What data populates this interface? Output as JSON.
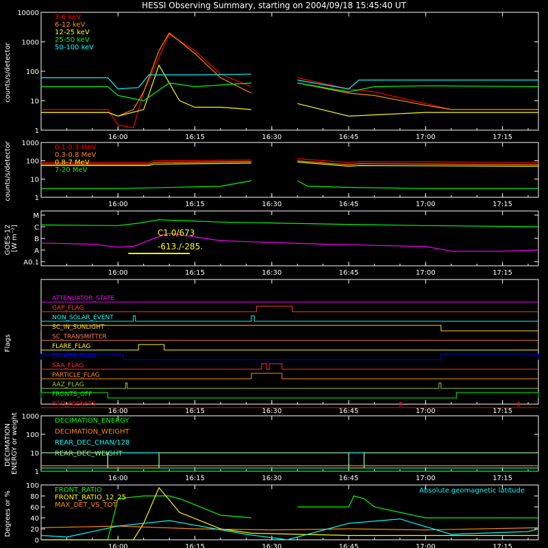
{
  "title": "HESSI Observing Summary, starting on 2004/09/18 15:45:40 UT",
  "time_ticks": [
    "16:00",
    "16:15",
    "16:30",
    "16:45",
    "17:00",
    "17:15"
  ],
  "chart_data": [
    {
      "type": "line",
      "ylabel": "counts/s/detector",
      "yscale": "log",
      "ylim": [
        1,
        10000
      ],
      "yticks": [
        "1",
        "10",
        "100",
        "1000",
        "10000"
      ],
      "legend_position": "top-left",
      "series": [
        {
          "name": "3-6 keV",
          "color": "#ff0000",
          "x": [
            "15:45",
            "15:58",
            "16:00",
            "16:03",
            "16:05",
            "16:08",
            "16:10",
            "16:15",
            "16:20",
            "16:26",
            "16:27",
            "16:34",
            "16:35",
            "16:45",
            "16:50",
            "17:00",
            "17:05",
            "17:15",
            "17:22"
          ],
          "y": [
            5,
            5,
            1.5,
            1.2,
            20,
            300,
            1800,
            500,
            80,
            30,
            null,
            null,
            60,
            25,
            20,
            8,
            5,
            5,
            5
          ]
        },
        {
          "name": "6-12 keV",
          "color": "#ff8c00",
          "x": [
            "15:45",
            "15:58",
            "16:00",
            "16:03",
            "16:05",
            "16:08",
            "16:10",
            "16:15",
            "16:20",
            "16:26",
            "16:27",
            "16:34",
            "16:35",
            "16:45",
            "16:50",
            "17:00",
            "17:05",
            "17:22"
          ],
          "y": [
            4,
            4,
            3,
            5,
            20,
            500,
            2000,
            400,
            60,
            18,
            null,
            null,
            40,
            18,
            15,
            7,
            5,
            5
          ]
        },
        {
          "name": "12-25 keV",
          "color": "#ffff00",
          "x": [
            "15:45",
            "15:58",
            "16:00",
            "16:05",
            "16:08",
            "16:12",
            "16:15",
            "16:20",
            "16:26",
            "16:27",
            "16:34",
            "16:35",
            "16:45",
            "17:00",
            "17:22"
          ],
          "y": [
            4,
            4,
            3,
            5,
            160,
            10,
            6,
            6,
            5,
            null,
            null,
            8,
            3,
            4,
            4
          ]
        },
        {
          "name": "25-50 keV",
          "color": "#00ff00",
          "x": [
            "15:45",
            "15:58",
            "16:00",
            "16:05",
            "16:10",
            "16:15",
            "16:26",
            "16:27",
            "16:34",
            "16:35",
            "16:45",
            "16:50",
            "17:00",
            "17:22"
          ],
          "y": [
            30,
            30,
            15,
            10,
            40,
            30,
            40,
            null,
            null,
            40,
            20,
            30,
            32,
            30
          ]
        },
        {
          "name": "50-100 keV",
          "color": "#00ffff",
          "x": [
            "15:45",
            "15:58",
            "16:00",
            "16:04",
            "16:06",
            "16:15",
            "16:26",
            "16:27",
            "16:34",
            "16:35",
            "16:45",
            "16:47",
            "17:00",
            "17:22"
          ],
          "y": [
            60,
            60,
            25,
            28,
            75,
            75,
            80,
            null,
            null,
            50,
            25,
            50,
            50,
            50
          ]
        }
      ]
    },
    {
      "type": "line",
      "ylabel": "counts/s/detector",
      "yscale": "log",
      "ylim": [
        1,
        1000
      ],
      "yticks": [
        "1",
        "10",
        "100",
        "1000"
      ],
      "legend_position": "top-left",
      "series": [
        {
          "name": "0.1-0.3 MeV",
          "color": "#ff0000",
          "x": [
            "15:45",
            "16:06",
            "16:07",
            "16:26",
            "16:27",
            "16:34",
            "16:35",
            "16:45",
            "16:47",
            "17:22"
          ],
          "y": [
            80,
            80,
            100,
            110,
            null,
            null,
            130,
            80,
            90,
            80
          ]
        },
        {
          "name": "0.3-0.8 MeV",
          "color": "#ff8c00",
          "x": [
            "15:45",
            "16:06",
            "16:07",
            "16:26",
            "16:27",
            "16:34",
            "16:35",
            "16:45",
            "16:47",
            "17:22"
          ],
          "y": [
            65,
            65,
            80,
            90,
            null,
            null,
            100,
            60,
            70,
            60
          ]
        },
        {
          "name": "0.8-7 MeV",
          "color": "#ffff00",
          "x": [
            "15:45",
            "16:06",
            "16:07",
            "16:26",
            "16:27",
            "16:34",
            "16:35",
            "16:45",
            "16:47",
            "17:22"
          ],
          "y": [
            55,
            55,
            65,
            75,
            null,
            null,
            85,
            50,
            55,
            50
          ]
        },
        {
          "name": "7-20 MeV",
          "color": "#00ff00",
          "x": [
            "15:45",
            "16:00",
            "16:20",
            "16:26",
            "16:27",
            "16:34",
            "16:35",
            "16:37",
            "16:45",
            "17:00",
            "17:22"
          ],
          "y": [
            3,
            3,
            4,
            8,
            null,
            null,
            8,
            4,
            3.5,
            3,
            3
          ]
        }
      ]
    },
    {
      "type": "line",
      "ylabel": "GOES-12",
      "ylabel2": "[W m⁻²]",
      "yscale": "log",
      "ylim": [
        0,
        5
      ],
      "yticks": [
        "A0.1",
        "A",
        "B",
        "C",
        "M"
      ],
      "annotations": [
        "C1.0/673",
        "-613./-285."
      ],
      "series": [
        {
          "name": "",
          "color": "#00ff00",
          "x": [
            "15:45",
            "16:00",
            "16:04",
            "16:08",
            "16:20",
            "16:45",
            "17:00",
            "17:22"
          ],
          "y": [
            3.15,
            3.1,
            3.3,
            3.6,
            3.4,
            3.2,
            3.1,
            3.0
          ]
        },
        {
          "name": "",
          "color": "#ff00ff",
          "x": [
            "15:45",
            "15:55",
            "16:00",
            "16:03",
            "16:07",
            "16:10",
            "16:20",
            "16:40",
            "17:00",
            "17:05",
            "17:15",
            "17:22"
          ],
          "y": [
            1.6,
            1.5,
            1.25,
            1.3,
            2.0,
            2.45,
            1.8,
            1.5,
            1.3,
            0.9,
            0.9,
            1.0
          ]
        }
      ]
    },
    {
      "type": "line",
      "ylabel": "Flags",
      "flags": [
        {
          "name": "ATTENUATOR_STATE",
          "color": "#ff00ff",
          "segments": []
        },
        {
          "name": "GAP_FLAG",
          "color": "#ff4500",
          "segments": [
            [
              "16:27",
              "16:34"
            ]
          ]
        },
        {
          "name": "NON_SOLAR_EVENT",
          "color": "#00ffff",
          "segments": [
            [
              "16:03",
              "16:03.4"
            ],
            [
              "16:26",
              "16:26.6"
            ]
          ]
        },
        {
          "name": "SC_IN_SUNLIGHT",
          "color": "#ffd700",
          "segments": [
            [
              "15:45",
              "17:03"
            ]
          ]
        },
        {
          "name": "SC_TRANSMITTER",
          "color": "#ff7f50",
          "segments": []
        },
        {
          "name": "FLARE_FLAG",
          "color": "#ffff00",
          "segments": [
            [
              "16:04",
              "16:09"
            ]
          ]
        },
        {
          "name": "ECLIPSE_FLAG",
          "color": "#0000ff",
          "segments": [
            [
              "15:45",
              "16:01"
            ],
            [
              "17:03",
              "17:22"
            ]
          ]
        },
        {
          "name": "SAA_FLAG",
          "color": "#ff3030",
          "segments": [
            [
              "16:28",
              "16:29"
            ],
            [
              "16:29.5",
              "16:32"
            ]
          ]
        },
        {
          "name": "PARTICLE_FLAG",
          "color": "#ff8c00",
          "segments": [
            [
              "16:26",
              "16:32"
            ]
          ]
        },
        {
          "name": "AAZ_FLAG",
          "color": "#9acd32",
          "segments": [
            [
              "16:01.5",
              "16:01.8"
            ],
            [
              "17:02.6",
              "17:03"
            ]
          ]
        },
        {
          "name": "FRONTS_OFF",
          "color": "#00ff00",
          "segments": [
            [
              "15:45",
              "15:58"
            ],
            [
              "17:06",
              "17:22"
            ]
          ]
        },
        {
          "name": "BAD_PACKETS",
          "color": "#ff0000",
          "segments": [
            [
              "16:55",
              "16:55.3"
            ],
            [
              "17:18",
              "17:18.3"
            ]
          ]
        }
      ]
    },
    {
      "type": "line",
      "ylabel": "DECIMATION",
      "ylabel2": "ENERGY or weight",
      "yscale": "log",
      "ylim": [
        1,
        1000
      ],
      "yticks": [
        "1",
        "10",
        "100",
        "1000"
      ],
      "legend_position": "top-left",
      "series": [
        {
          "name": "DECIMATION_ENERGY",
          "color": "#00ff00",
          "x": [
            "15:45",
            "17:22"
          ],
          "y": [
            1,
            1
          ]
        },
        {
          "name": "DECIMATION_WEIGHT",
          "color": "#ff8c00",
          "x": [
            "15:45",
            "17:22"
          ],
          "y": [
            2,
            2
          ]
        },
        {
          "name": "REAR_DEC_CHAN/128",
          "color": "#00ffff",
          "x": [
            "15:45",
            "15:58",
            "15:58",
            "16:08",
            "16:08",
            "16:45",
            "16:45",
            "16:48",
            "16:48",
            "17:22"
          ],
          "y": [
            1.5,
            1.5,
            10,
            10,
            1.5,
            1.5,
            10,
            10,
            1.5,
            1.5
          ]
        },
        {
          "name": "REAR_DEC_WEIGHT",
          "color": "#90ee90",
          "x": [
            "15:45",
            "15:58",
            "15:58",
            "16:08",
            "16:08",
            "16:45",
            "16:45",
            "16:48",
            "16:48",
            "17:22"
          ],
          "y": [
            10,
            10,
            1.5,
            1.5,
            10,
            10,
            1.5,
            1.5,
            10,
            10
          ]
        }
      ]
    },
    {
      "type": "line",
      "ylabel": "Degrees or %",
      "ylim": [
        0,
        100
      ],
      "yticks": [
        "0",
        "20",
        "40",
        "60",
        "80",
        "100"
      ],
      "legend_position": "top-left",
      "series": [
        {
          "name": "FRONT_RATIO",
          "color": "#00ff00",
          "x": [
            "15:45",
            "15:58",
            "16:00",
            "16:05",
            "16:10",
            "16:12",
            "16:20",
            "16:26",
            "16:27",
            "16:34",
            "16:35",
            "16:45",
            "16:46",
            "16:48",
            "16:50",
            "17:00",
            "17:22"
          ],
          "y": [
            0,
            0,
            75,
            80,
            80,
            75,
            45,
            40,
            null,
            null,
            60,
            60,
            80,
            75,
            60,
            40,
            40
          ]
        },
        {
          "name": "FRONT_RATIO_12_25",
          "color": "#ffff00",
          "x": [
            "15:45",
            "16:03",
            "16:05",
            "16:08",
            "16:12",
            "16:20",
            "16:26",
            "16:35",
            "16:45",
            "17:00",
            "17:22"
          ],
          "y": [
            0,
            0,
            30,
            95,
            50,
            20,
            12,
            10,
            8,
            8,
            8
          ]
        },
        {
          "name": "MAX_DET_VS_TOT",
          "color": "#ff8c00",
          "x": [
            "15:45",
            "16:00",
            "16:15",
            "16:30",
            "16:45",
            "17:00",
            "17:22"
          ],
          "y": [
            22,
            25,
            20,
            18,
            20,
            18,
            22
          ]
        },
        {
          "name": "Absolute geomagnetic latitude",
          "color": "#00ffff",
          "x": [
            "15:45",
            "15:50",
            "16:00",
            "16:10",
            "16:25",
            "16:33",
            "16:45",
            "16:55",
            "17:05",
            "17:20",
            "17:22"
          ],
          "y": [
            8,
            5,
            25,
            35,
            10,
            0,
            30,
            38,
            10,
            15,
            20
          ]
        }
      ]
    }
  ]
}
